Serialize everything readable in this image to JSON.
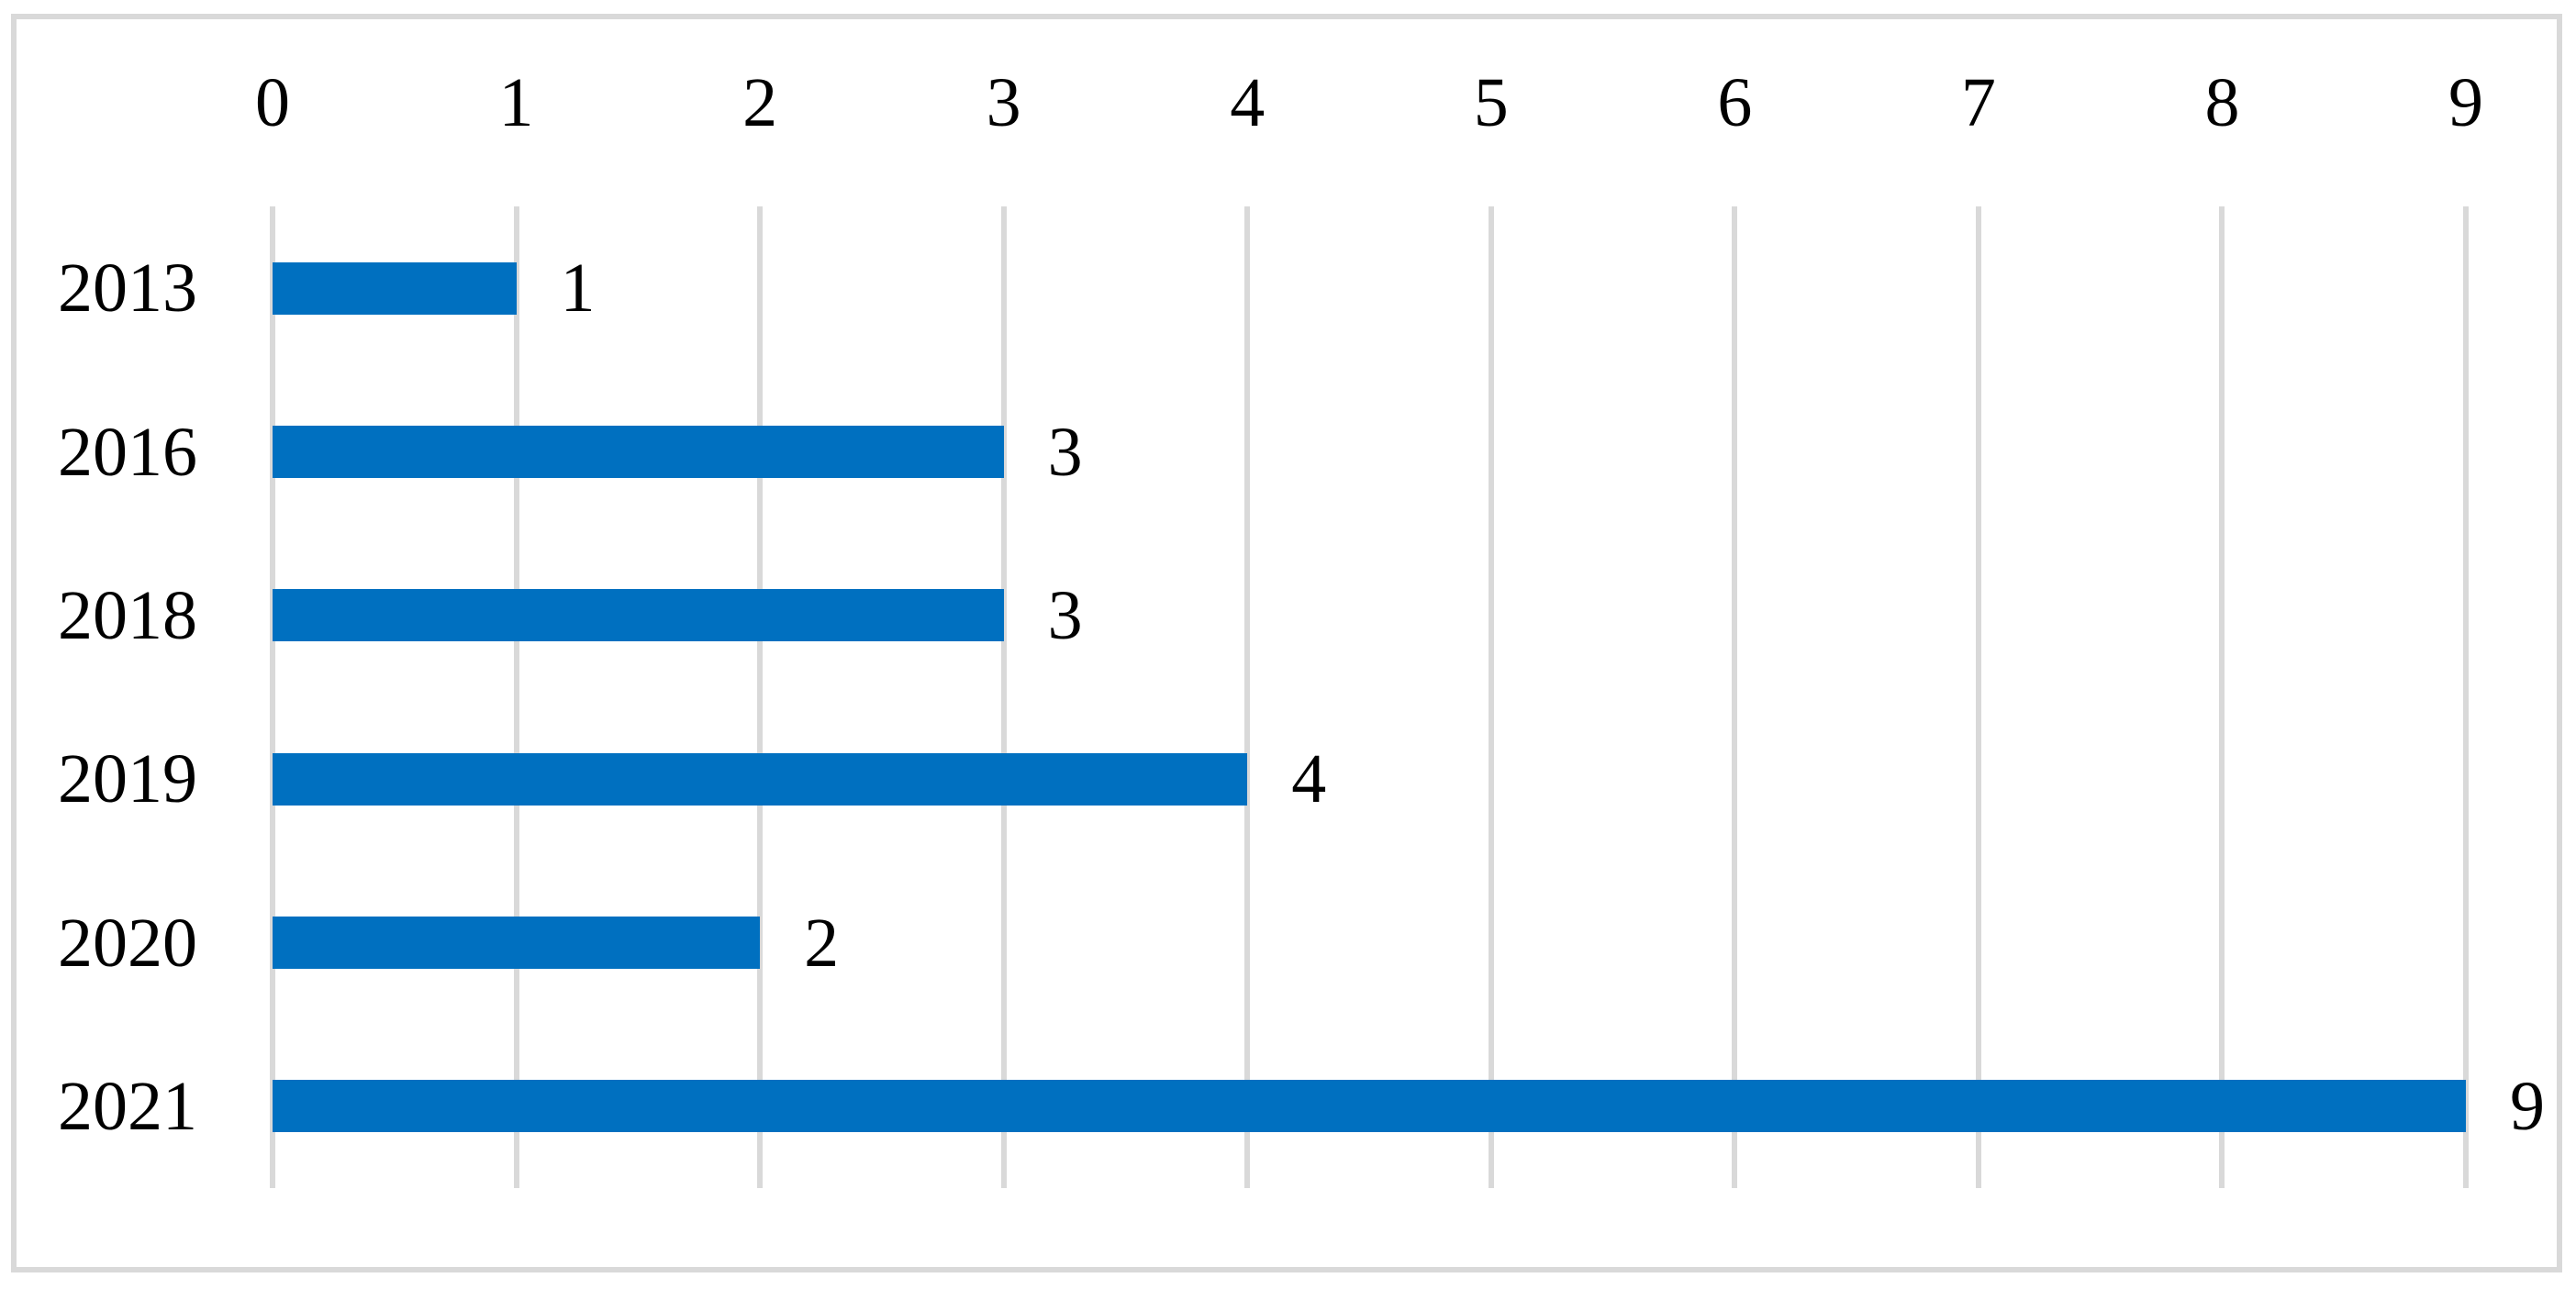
{
  "chart_data": {
    "type": "bar",
    "orientation": "horizontal",
    "title": "",
    "xlabel": "",
    "ylabel": "",
    "categories": [
      "2013",
      "2016",
      "2018",
      "2019",
      "2020",
      "2021"
    ],
    "values": [
      1,
      3,
      3,
      4,
      2,
      9
    ],
    "data_labels": [
      "1",
      "3",
      "3",
      "4",
      "2",
      "9"
    ],
    "x_axis": {
      "position": "top",
      "min": 0,
      "max": 9,
      "ticks": [
        "0",
        "1",
        "2",
        "3",
        "4",
        "5",
        "6",
        "7",
        "8",
        "9"
      ]
    },
    "grid": true,
    "legend": false,
    "colors": {
      "bar": "#0070c0",
      "gridline": "#d9d9d9",
      "frame": "#d9d9d9",
      "text": "#000000",
      "background": "#ffffff"
    }
  }
}
